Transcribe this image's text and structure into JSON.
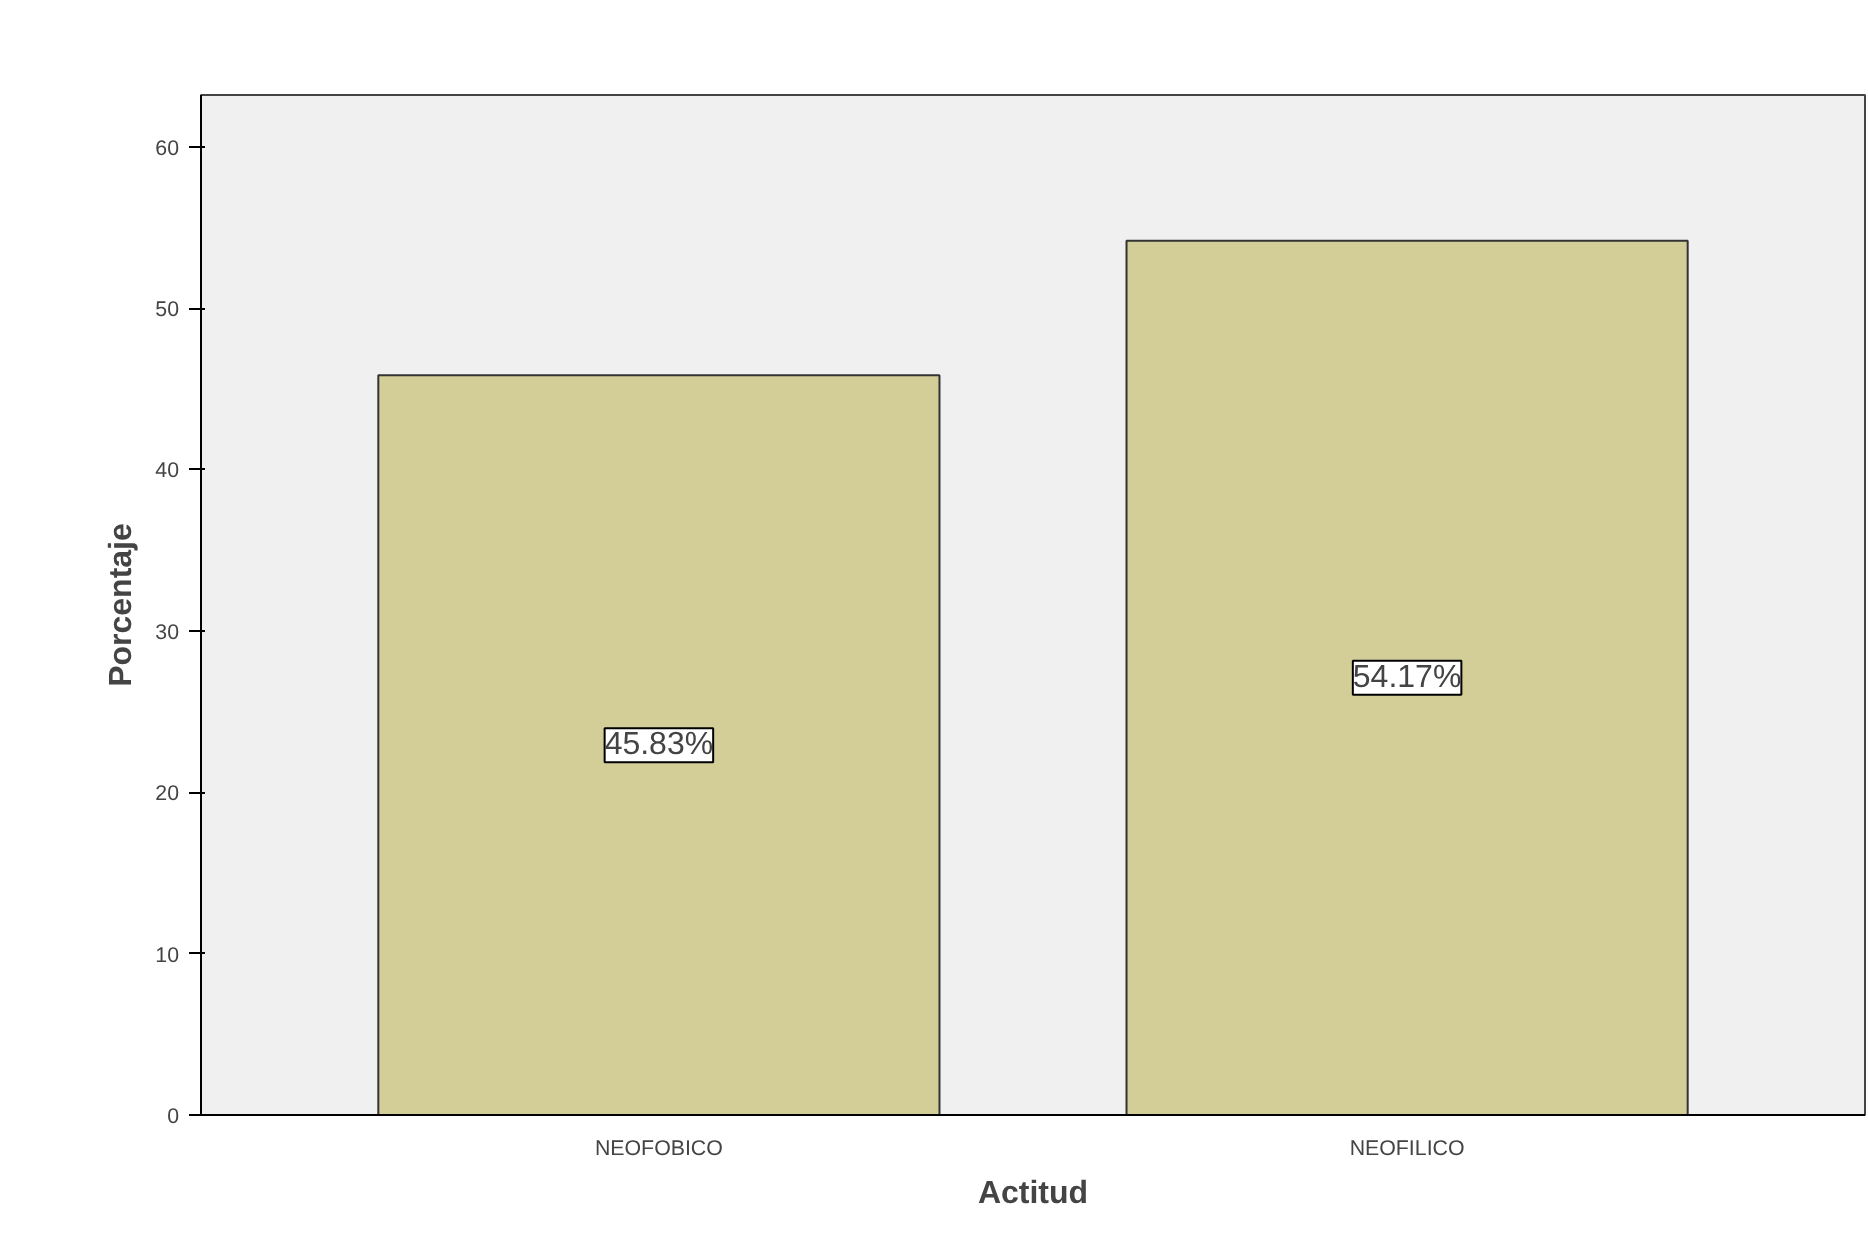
{
  "chart_data": {
    "type": "bar",
    "xlabel": "Actitud",
    "ylabel": "Porcentaje",
    "categories": [
      "NEOFOBICO",
      "NEOFILICO"
    ],
    "values": [
      45.83,
      54.17
    ],
    "value_labels": [
      "45.83%",
      "54.17%"
    ],
    "color": "#d3ce98",
    "ylim": [
      0,
      63.2
    ],
    "yticks": [
      0,
      10,
      20,
      30,
      40,
      50,
      60
    ],
    "grid": false
  }
}
